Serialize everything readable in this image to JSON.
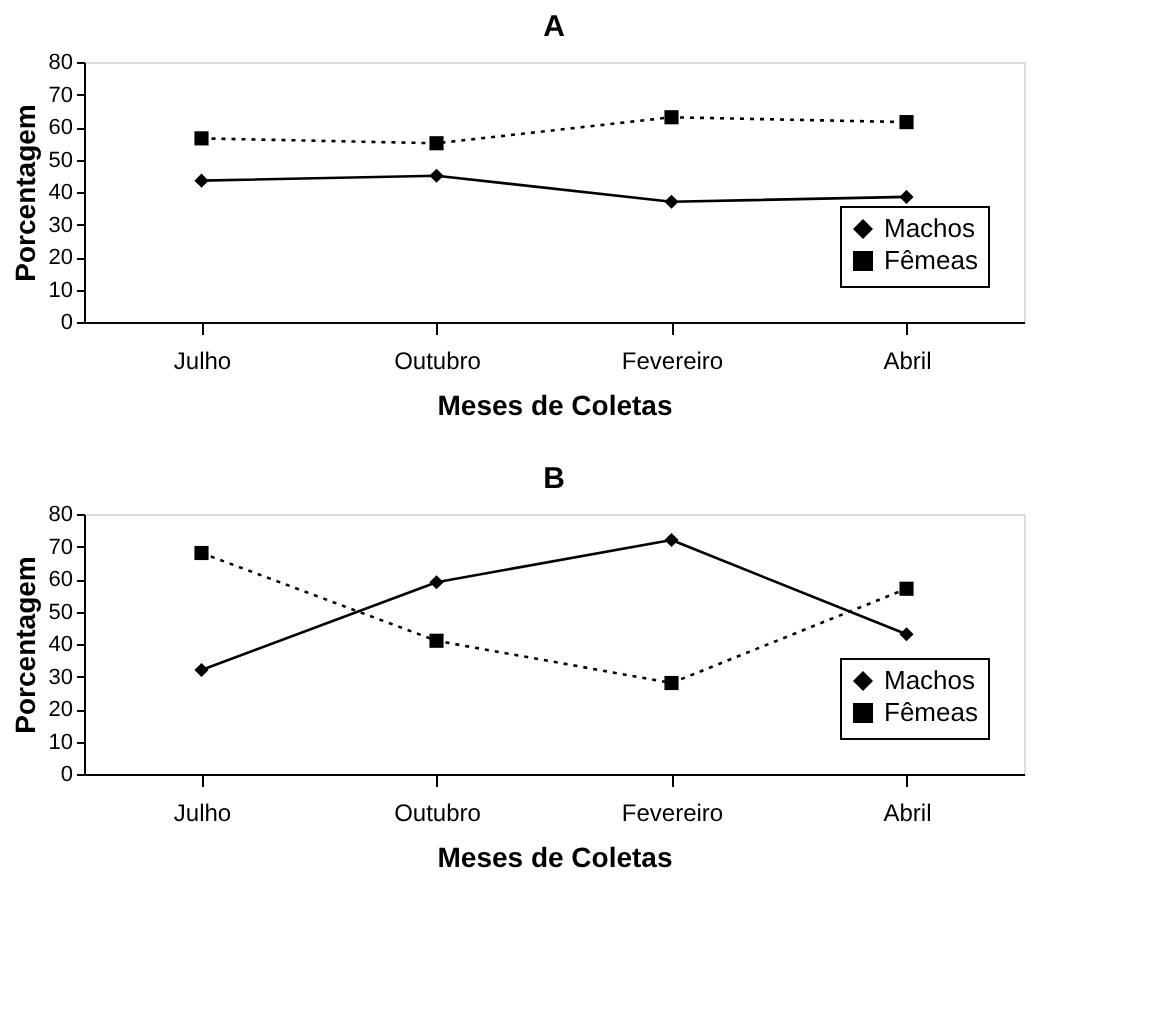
{
  "chart_data": [
    {
      "type": "line",
      "title": "A",
      "xlabel": "Meses de Coletas",
      "ylabel": "Porcentagem",
      "categories": [
        "Julho",
        "Outubro",
        "Fevereiro",
        "Abril"
      ],
      "ylim": [
        0,
        80
      ],
      "yticks": [
        0,
        10,
        20,
        30,
        40,
        50,
        60,
        70,
        80
      ],
      "grid": false,
      "legend": "bottom right",
      "series": [
        {
          "name": "Machos",
          "color": "#000000",
          "marker": "diamond",
          "line_style": "solid",
          "values": [
            43.5,
            45,
            37,
            38.5
          ]
        },
        {
          "name": "Fêmeas",
          "color": "#000000",
          "marker": "square",
          "line_style": "dotted",
          "values": [
            56.5,
            55,
            63,
            61.5
          ]
        }
      ]
    },
    {
      "type": "line",
      "title": "B",
      "xlabel": "Meses de Coletas",
      "ylabel": "Porcentagem",
      "categories": [
        "Julho",
        "Outubro",
        "Fevereiro",
        "Abril"
      ],
      "ylim": [
        0,
        80
      ],
      "yticks": [
        0,
        10,
        20,
        30,
        40,
        50,
        60,
        70,
        80
      ],
      "grid": false,
      "legend": "bottom right",
      "series": [
        {
          "name": "Machos",
          "color": "#000000",
          "marker": "diamond",
          "line_style": "solid",
          "values": [
            32,
            59,
            72,
            43
          ]
        },
        {
          "name": "Fêmeas",
          "color": "#000000",
          "marker": "square",
          "line_style": "dotted",
          "values": [
            68,
            41,
            28,
            57
          ]
        }
      ]
    }
  ]
}
